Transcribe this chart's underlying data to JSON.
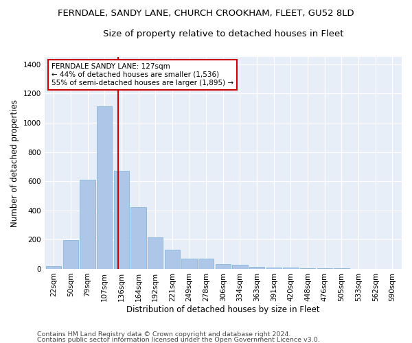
{
  "title1": "FERNDALE, SANDY LANE, CHURCH CROOKHAM, FLEET, GU52 8LD",
  "title2": "Size of property relative to detached houses in Fleet",
  "xlabel": "Distribution of detached houses by size in Fleet",
  "ylabel": "Number of detached properties",
  "categories": [
    "22sqm",
    "50sqm",
    "79sqm",
    "107sqm",
    "136sqm",
    "164sqm",
    "192sqm",
    "221sqm",
    "249sqm",
    "278sqm",
    "306sqm",
    "334sqm",
    "363sqm",
    "391sqm",
    "420sqm",
    "448sqm",
    "476sqm",
    "505sqm",
    "533sqm",
    "562sqm",
    "590sqm"
  ],
  "values": [
    20,
    195,
    610,
    1110,
    670,
    420,
    215,
    130,
    70,
    70,
    35,
    30,
    15,
    10,
    10,
    3,
    3,
    3,
    0,
    0,
    0
  ],
  "bar_color": "#aec6e8",
  "bar_edge_color": "#7aafd4",
  "background_color": "#e8eef8",
  "grid_color": "#ffffff",
  "vline_color": "#cc0000",
  "annotation_text": "FERNDALE SANDY LANE: 127sqm\n← 44% of detached houses are smaller (1,536)\n55% of semi-detached houses are larger (1,895) →",
  "annotation_box_color": "#cc0000",
  "ylim": [
    0,
    1450
  ],
  "yticks": [
    0,
    200,
    400,
    600,
    800,
    1000,
    1200,
    1400
  ],
  "footer1": "Contains HM Land Registry data © Crown copyright and database right 2024.",
  "footer2": "Contains public sector information licensed under the Open Government Licence v3.0.",
  "title1_fontsize": 9.5,
  "title2_fontsize": 9.5,
  "axis_label_fontsize": 8.5,
  "tick_fontsize": 7.5,
  "annotation_fontsize": 7.5,
  "footer_fontsize": 6.8,
  "fig_facecolor": "#ffffff"
}
